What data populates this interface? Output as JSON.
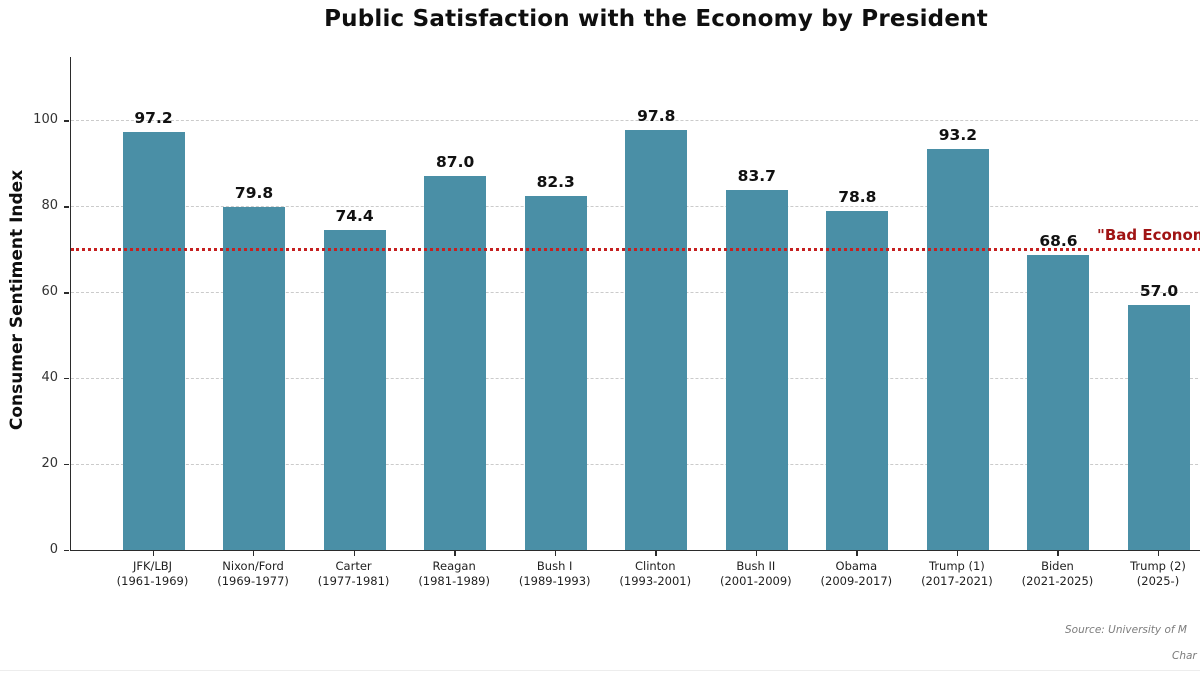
{
  "chart_data": {
    "type": "bar",
    "title": "Public Satisfaction with the Economy by President",
    "xlabel": "",
    "ylabel": "Consumer Sentiment Index",
    "categories": [
      "JFK/LBJ",
      "Nixon/Ford",
      "Carter",
      "Reagan",
      "Bush I",
      "Clinton",
      "Bush II",
      "Obama",
      "Trump (1)",
      "Biden",
      "Trump (2)"
    ],
    "category_year_ranges": [
      "(1961-1969)",
      "(1969-1977)",
      "(1977-1981)",
      "(1981-1989)",
      "(1989-1993)",
      "(1993-2001)",
      "(2001-2009)",
      "(2009-2017)",
      "(2017-2021)",
      "(2021-2025)",
      "(2025-)"
    ],
    "values": [
      97.2,
      79.8,
      74.4,
      87.0,
      82.3,
      97.8,
      83.7,
      78.8,
      93.2,
      68.6,
      57.0
    ],
    "value_labels": [
      "97.2",
      "79.8",
      "74.4",
      "87.0",
      "82.3",
      "97.8",
      "83.7",
      "78.8",
      "93.2",
      "68.6",
      "57.0"
    ],
    "ylim": [
      0,
      114.7
    ],
    "yticks": [
      0,
      20,
      40,
      60,
      80,
      100
    ],
    "grid": "horizontal dashed",
    "legend": "none",
    "bar_color": "#4a8fa6",
    "threshold": {
      "value": 70,
      "label_visible": "\"Bad Econom",
      "line_color": "#c62020",
      "label_color": "#a01414"
    }
  },
  "footer": {
    "source_visible": "Source: University of M",
    "credit_visible": "Char"
  }
}
